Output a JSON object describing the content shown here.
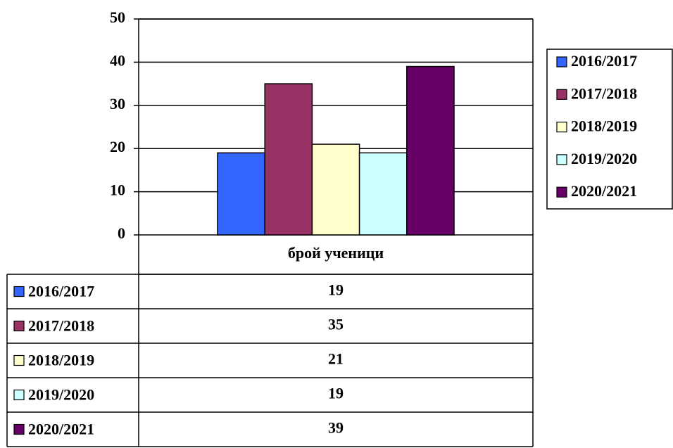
{
  "chart_data": {
    "type": "bar",
    "categories": [
      "брой ученици"
    ],
    "series": [
      {
        "name": "2016/2017",
        "color": "#3366ff",
        "values": [
          19
        ]
      },
      {
        "name": "2017/2018",
        "color": "#993366",
        "values": [
          35
        ]
      },
      {
        "name": "2018/2019",
        "color": "#ffffcc",
        "values": [
          21
        ]
      },
      {
        "name": "2019/2020",
        "color": "#ccffff",
        "values": [
          19
        ]
      },
      {
        "name": "2020/2021",
        "color": "#660066",
        "values": [
          39
        ]
      }
    ],
    "ylim": [
      0,
      50
    ],
    "yticks": [
      0,
      10,
      20,
      30,
      40,
      50
    ],
    "grid": true,
    "legend": "right",
    "data_table": true
  }
}
